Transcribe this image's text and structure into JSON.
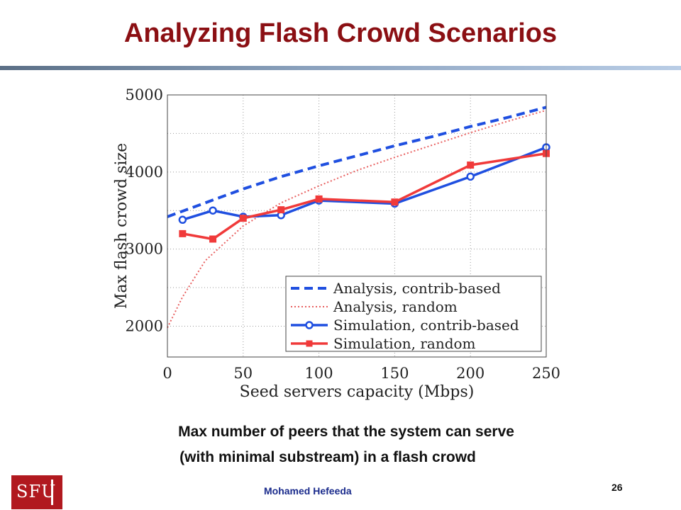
{
  "slide": {
    "title": "Analyzing Flash Crowd Scenarios",
    "caption_line1": "Max number of peers that the system can serve",
    "caption_line2": "(with minimal substream) in a flash crowd",
    "author": "Mohamed  Hefeeda",
    "page_number": "26",
    "logo_text": "SFU",
    "colors": {
      "title": "#8b0f13",
      "logo": "#b1191f",
      "author": "#1a2b8c"
    }
  },
  "chart_data": {
    "type": "line",
    "xlabel": "Seed servers capacity (Mbps)",
    "ylabel": "Max flash crowd size",
    "xlim": [
      0,
      250
    ],
    "ylim": [
      1600,
      5000
    ],
    "x_ticks": [
      0,
      50,
      100,
      150,
      200,
      250
    ],
    "y_ticks": [
      2000,
      3000,
      4000,
      5000
    ],
    "grid": true,
    "legend_position": "bottom-right",
    "series": [
      {
        "name": "Analysis, contrib-based",
        "color": "#1f4fe0",
        "style": "dashed",
        "marker": "none",
        "x": [
          0,
          25,
          50,
          75,
          100,
          125,
          150,
          175,
          200,
          225,
          250
        ],
        "y": [
          3420,
          3600,
          3780,
          3940,
          4080,
          4210,
          4340,
          4460,
          4590,
          4710,
          4840
        ]
      },
      {
        "name": "Analysis, random",
        "color": "#e86060",
        "style": "dotted",
        "marker": "none",
        "x": [
          0,
          10,
          25,
          50,
          75,
          100,
          125,
          150,
          175,
          200,
          225,
          250
        ],
        "y": [
          1980,
          2380,
          2850,
          3300,
          3600,
          3820,
          4020,
          4190,
          4350,
          4510,
          4660,
          4800
        ]
      },
      {
        "name": "Simulation, contrib-based",
        "color": "#1f4fe0",
        "style": "solid",
        "marker": "circle",
        "x": [
          10,
          30,
          50,
          75,
          100,
          150,
          200,
          250
        ],
        "y": [
          3380,
          3500,
          3420,
          3440,
          3630,
          3590,
          3940,
          4320
        ]
      },
      {
        "name": "Simulation, random",
        "color": "#f03a3a",
        "style": "solid",
        "marker": "square",
        "x": [
          10,
          30,
          50,
          75,
          100,
          150,
          200,
          250
        ],
        "y": [
          3200,
          3130,
          3400,
          3510,
          3650,
          3610,
          4090,
          4240
        ]
      }
    ]
  }
}
